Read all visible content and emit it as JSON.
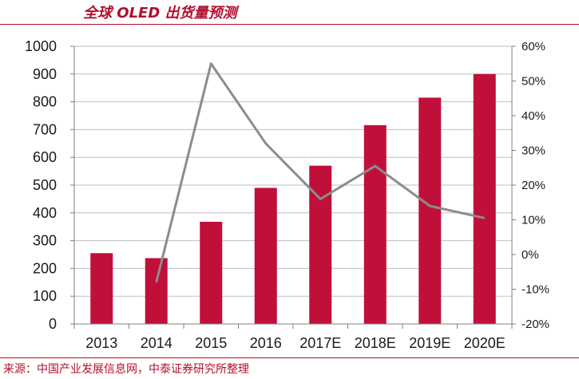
{
  "title": "全球 OLED 出货量预测",
  "source": "来源：中国产业发展信息网，中泰证券研究所整理",
  "colors": {
    "bar": "#c0103a",
    "line": "#8c8c8c",
    "accent": "#b30f2e",
    "grid": "#bfbfbf",
    "axis": "#7f7f7f"
  },
  "chart_data": {
    "type": "bar",
    "categories": [
      "2013",
      "2014",
      "2015",
      "2016",
      "2017E",
      "2018E",
      "2019E",
      "2020E"
    ],
    "series": [
      {
        "type": "bar",
        "axis": "left",
        "values": [
          255,
          237,
          368,
          490,
          570,
          716,
          815,
          900
        ]
      },
      {
        "type": "line",
        "axis": "right",
        "values": [
          null,
          -8,
          55,
          32,
          16,
          25.5,
          14,
          10.5
        ]
      }
    ],
    "ylim": [
      0,
      1000
    ],
    "yticks": [
      "0",
      "100",
      "200",
      "300",
      "400",
      "500",
      "600",
      "700",
      "800",
      "900",
      "1000"
    ],
    "y2lim": [
      -20,
      60
    ],
    "y2ticks": [
      "-20%",
      "-10%",
      "0%",
      "10%",
      "20%",
      "30%",
      "40%",
      "50%",
      "60%"
    ],
    "grid": true,
    "legend": "none"
  }
}
